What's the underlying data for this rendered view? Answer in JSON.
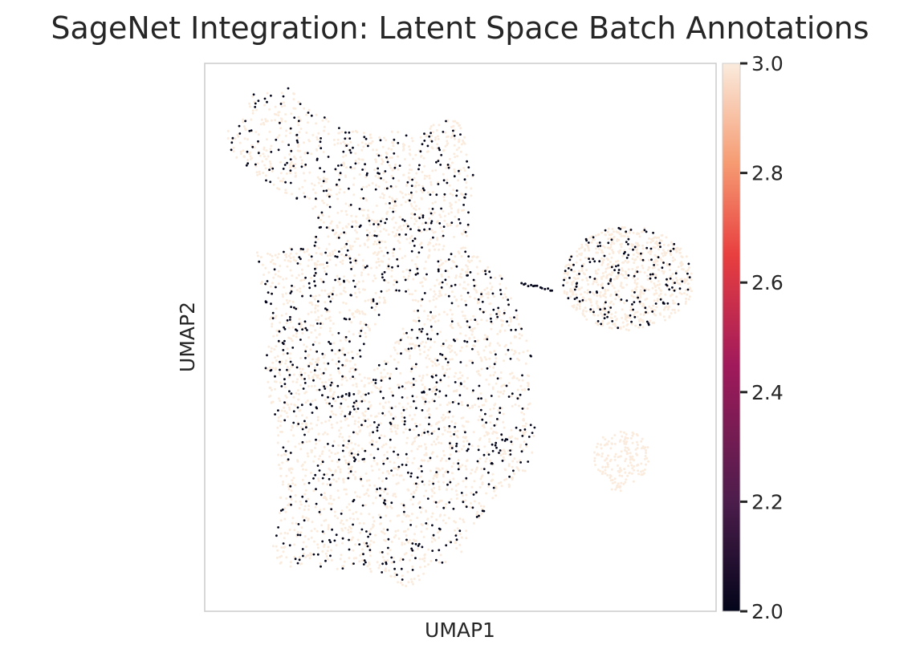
{
  "chart_data": {
    "type": "scatter",
    "title": "SageNet Integration: Latent Space Batch Annotations",
    "xlabel": "UMAP1",
    "ylabel": "UMAP2",
    "x_ticks_shown": false,
    "y_ticks_shown": false,
    "grid": false,
    "legend": "colorbar-right",
    "colorbar": {
      "min": 2.0,
      "max": 3.0,
      "ticks": [
        "2.0",
        "2.2",
        "2.4",
        "2.6",
        "2.8",
        "3.0"
      ],
      "colormap": "rocket",
      "stops": [
        "#03051a",
        "#4c1d4b",
        "#a11a5b",
        "#e83f3f",
        "#f69c73",
        "#faebdd"
      ]
    },
    "series": [
      {
        "value": 2,
        "color": "#03051a"
      },
      {
        "value": 3,
        "color": "#faebdd"
      }
    ],
    "clusters": [
      {
        "shape": "main",
        "dark_fraction": 0.23
      },
      {
        "shape": "right-oval",
        "dark_fraction": 0.2
      },
      {
        "shape": "small-blob",
        "dark_fraction": 0.0
      }
    ]
  }
}
